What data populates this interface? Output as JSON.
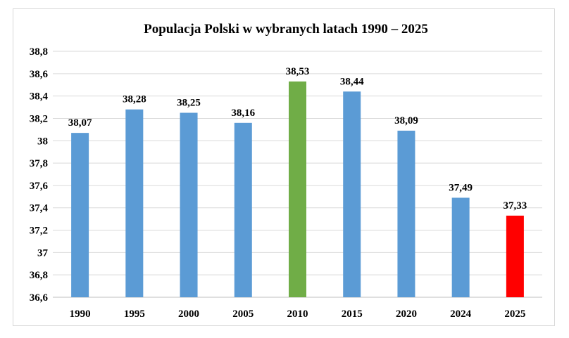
{
  "chart_data": {
    "type": "bar",
    "title": "Populacja  Polski w wybranych  latach 1990 – 2025",
    "xlabel": "",
    "ylabel": "",
    "categories": [
      "1990",
      "1995",
      "2000",
      "2005",
      "2010",
      "2015",
      "2020",
      "2024",
      "2025"
    ],
    "values": [
      38.07,
      38.28,
      38.25,
      38.16,
      38.53,
      38.44,
      38.09,
      37.49,
      37.33
    ],
    "data_labels": [
      "38,07",
      "38,28",
      "38,25",
      "38,16",
      "38,53",
      "38,44",
      "38,09",
      "37,49",
      "37,33"
    ],
    "bar_colors": [
      "#5b9bd5",
      "#5b9bd5",
      "#5b9bd5",
      "#5b9bd5",
      "#70ad47",
      "#5b9bd5",
      "#5b9bd5",
      "#5b9bd5",
      "#ff0000"
    ],
    "ylim": [
      36.6,
      38.8
    ],
    "yticks": [
      36.6,
      36.8,
      37,
      37.2,
      37.4,
      37.6,
      37.8,
      38,
      38.2,
      38.4,
      38.6,
      38.8
    ],
    "ytick_labels": [
      "36,6",
      "36,8",
      "37",
      "37,2",
      "37,4",
      "37,6",
      "37,8",
      "38",
      "38,2",
      "38,4",
      "38,6",
      "38,8"
    ],
    "grid": true,
    "legend": "none"
  }
}
